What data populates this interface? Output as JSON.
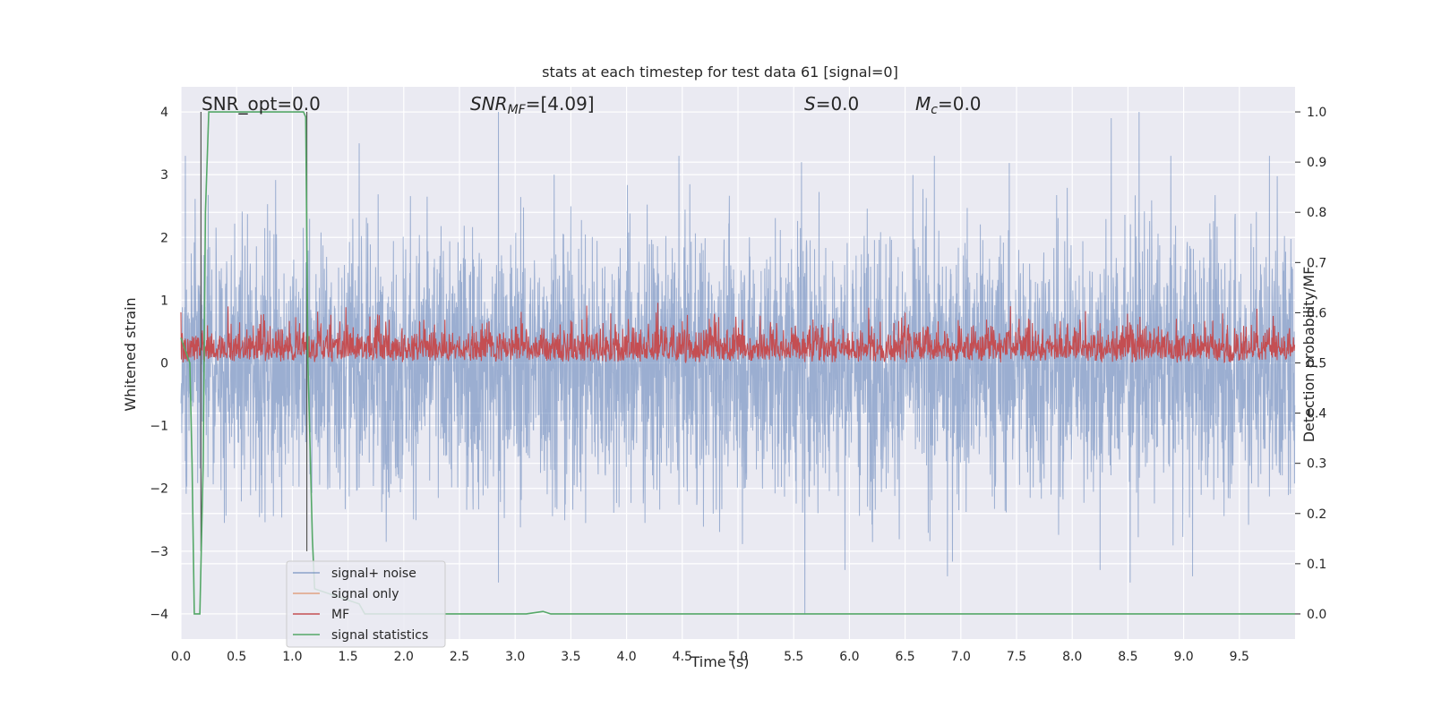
{
  "chart_data": {
    "type": "line",
    "title": "stats at each timestep for test data 61 [signal=0]",
    "xlabel": "Time (s)",
    "ylabel_left": "Whitened strain",
    "ylabel_right": "Detection probability/MF",
    "xlim": [
      0,
      10
    ],
    "ylim_left": [
      -4.4,
      4.4
    ],
    "ylim_right": [
      -0.05,
      1.05
    ],
    "grid": true,
    "x_ticks": [
      "0.0",
      "0.5",
      "1.0",
      "1.5",
      "2.0",
      "2.5",
      "3.0",
      "3.5",
      "4.0",
      "4.5",
      "5.0",
      "5.5",
      "6.0",
      "6.5",
      "7.0",
      "7.5",
      "8.0",
      "8.5",
      "9.0",
      "9.5"
    ],
    "x_tick_values": [
      0,
      0.5,
      1,
      1.5,
      2,
      2.5,
      3,
      3.5,
      4,
      4.5,
      5,
      5.5,
      6,
      6.5,
      7,
      7.5,
      8,
      8.5,
      9,
      9.5
    ],
    "y_left_ticks": [
      "4",
      "3",
      "2",
      "1",
      "0",
      "−1",
      "−2",
      "−3",
      "−4"
    ],
    "y_left_tick_values": [
      4,
      3,
      2,
      1,
      0,
      -1,
      -2,
      -3,
      -4
    ],
    "y_right_ticks": [
      "1.0",
      "0.9",
      "0.8",
      "0.7",
      "0.6",
      "0.5",
      "0.4",
      "0.3",
      "0.2",
      "0.1",
      "0.0"
    ],
    "y_right_tick_values": [
      1.0,
      0.9,
      0.8,
      0.7,
      0.6,
      0.5,
      0.4,
      0.3,
      0.2,
      0.1,
      0.0
    ],
    "annotations": {
      "snr_opt": "SNR_opt=0.0",
      "snr_mf_name": "SNR",
      "snr_mf_sub": "MF",
      "snr_mf_value": "=[4.09]",
      "s_name": "S",
      "s_value": "=0.0",
      "mc_name": "M",
      "mc_sub": "c",
      "mc_value": "=0.0"
    },
    "vertical_markers_x": [
      0.18,
      1.13
    ],
    "legend": {
      "placement": "lower-left",
      "entries": [
        "signal+ noise",
        "signal only",
        "MF",
        "signal statistics"
      ]
    },
    "series": [
      {
        "name": "signal+ noise",
        "axis": "left",
        "color": "#4c72b0",
        "style": "dense noise, typical envelope ±2.2, peaks up to ±4"
      },
      {
        "name": "signal only",
        "axis": "left",
        "color": "#dd8452",
        "values": []
      },
      {
        "name": "MF",
        "axis": "right",
        "color": "#c44e52",
        "style": "dense noise between 0.50 and ~0.65, max ~0.62"
      },
      {
        "name": "signal statistics",
        "axis": "right",
        "color": "#55a868",
        "x": [
          0,
          0.08,
          0.1,
          0.12,
          0.17,
          0.2,
          0.22,
          0.25,
          0.3,
          1.05,
          1.1,
          1.12,
          1.14,
          1.18,
          1.2,
          1.6,
          1.65,
          3.1,
          3.25,
          3.32,
          10
        ],
        "values": [
          0.55,
          0.5,
          0.3,
          0.0,
          0.0,
          0.3,
          0.8,
          1.0,
          1.0,
          1.0,
          1.0,
          0.99,
          0.5,
          0.15,
          0.05,
          0.02,
          0.0,
          0.0,
          0.005,
          0.0,
          0.0
        ]
      }
    ],
    "tall_peaks": [
      {
        "x": 0.04,
        "y": 3.3
      },
      {
        "x": 1.6,
        "y": 3.5
      },
      {
        "x": 2.85,
        "y": 4.0
      },
      {
        "x": 3.35,
        "y": 3.0
      },
      {
        "x": 4.47,
        "y": 3.3
      },
      {
        "x": 5.57,
        "y": 3.2
      },
      {
        "x": 8.35,
        "y": 3.9
      },
      {
        "x": 8.6,
        "y": 4.0
      },
      {
        "x": 9.77,
        "y": 3.3
      },
      {
        "x": 2.85,
        "y": -3.5
      },
      {
        "x": 5.6,
        "y": -4.0
      },
      {
        "x": 6.88,
        "y": -3.4
      },
      {
        "x": 8.52,
        "y": -3.5
      },
      {
        "x": 9.08,
        "y": -3.4
      },
      {
        "x": 8.25,
        "y": -3.3
      }
    ],
    "colors": {
      "background": "#eaeaf2",
      "grid": "#ffffff",
      "text": "#262626",
      "vertical_marker": "#555555"
    }
  }
}
